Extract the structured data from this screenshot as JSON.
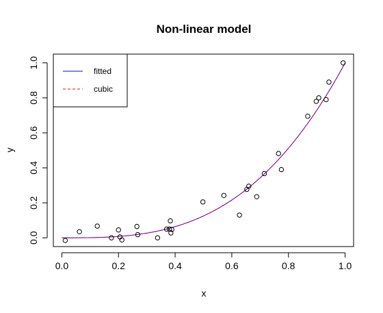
{
  "chart_data": {
    "type": "scatter",
    "title": "Non-linear model",
    "xlabel": "x",
    "ylabel": "y",
    "xlim": [
      -0.03,
      1.03
    ],
    "ylim": [
      -0.05,
      1.05
    ],
    "xticks": [
      "0.0",
      "0.2",
      "0.4",
      "0.6",
      "0.8",
      "1.0"
    ],
    "yticks": [
      "0.0",
      "0.2",
      "0.4",
      "0.6",
      "0.8",
      "1.0"
    ],
    "grid": false,
    "legend_position": "top-left",
    "points": {
      "x": [
        0.012,
        0.062,
        0.125,
        0.175,
        0.2,
        0.205,
        0.212,
        0.265,
        0.268,
        0.338,
        0.37,
        0.38,
        0.383,
        0.385,
        0.388,
        0.498,
        0.572,
        0.627,
        0.653,
        0.66,
        0.688,
        0.715,
        0.765,
        0.775,
        0.868,
        0.898,
        0.907,
        0.933,
        0.943,
        0.993
      ],
      "y": [
        -0.015,
        0.035,
        0.067,
        0.0,
        0.045,
        0.005,
        -0.012,
        0.065,
        0.018,
        0.0,
        0.05,
        0.05,
        0.097,
        0.028,
        0.048,
        0.205,
        0.242,
        0.13,
        0.277,
        0.295,
        0.235,
        0.367,
        0.482,
        0.39,
        0.695,
        0.78,
        0.8,
        0.79,
        0.89,
        1.0
      ]
    },
    "series": [
      {
        "name": "fitted",
        "color": "#0000ff",
        "style": "solid",
        "model": "y = x^3"
      },
      {
        "name": "cubic",
        "color": "#ff0000",
        "style": "dashed",
        "model": "y = x^3"
      }
    ]
  }
}
